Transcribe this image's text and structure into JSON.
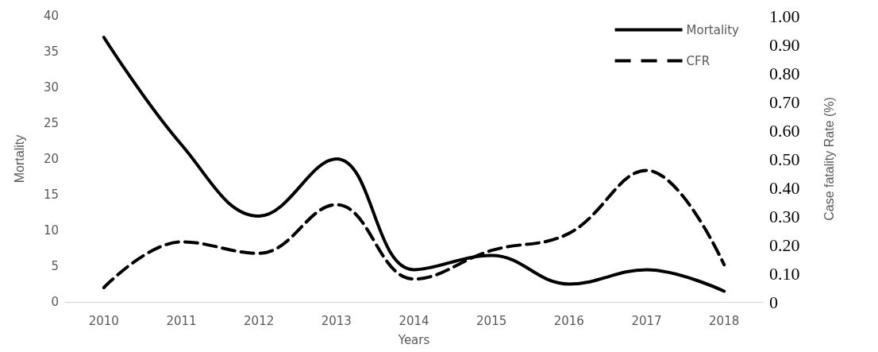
{
  "chart_data": {
    "type": "line",
    "xlabel": "Years",
    "ylabel": "Mortality",
    "y2label": "Case fatality Rate (%)",
    "categories": [
      "2010",
      "2011",
      "2012",
      "2013",
      "2014",
      "2015",
      "2016",
      "2017",
      "2018"
    ],
    "series": [
      {
        "name": "Mortality",
        "color": "#000000",
        "line_style": "solid",
        "values": [
          37,
          22,
          12,
          20,
          4.5,
          6.5,
          2.5,
          4.5,
          1.5
        ]
      },
      {
        "name": "CFR",
        "color": "#000000",
        "line_style": "dashed",
        "axis": "y2",
        "values": [
          0.05,
          0.21,
          0.17,
          0.34,
          0.08,
          0.18,
          0.24,
          0.46,
          0.13
        ]
      }
    ],
    "ylim": [
      0,
      40
    ],
    "yticks": [
      0,
      5,
      10,
      15,
      20,
      25,
      30,
      35,
      40
    ],
    "y2lim": [
      0,
      1
    ],
    "y2ticks": [
      0,
      {
        "value": 0.1,
        "label": "0.10"
      },
      {
        "value": 0.2,
        "label": "0.20"
      },
      {
        "value": 0.3,
        "label": "0.30"
      },
      {
        "value": 0.4,
        "label": "0.40"
      },
      {
        "value": 0.5,
        "label": "0.50"
      },
      {
        "value": 0.6,
        "label": "0.60"
      },
      {
        "value": 0.7,
        "label": "0.70"
      },
      {
        "value": 0.8,
        "label": "0.80"
      },
      {
        "value": 0.9,
        "label": "0.90"
      },
      {
        "value": 1,
        "label": "1.00"
      }
    ],
    "grid": false,
    "legend": "top right",
    "marker": "none"
  }
}
